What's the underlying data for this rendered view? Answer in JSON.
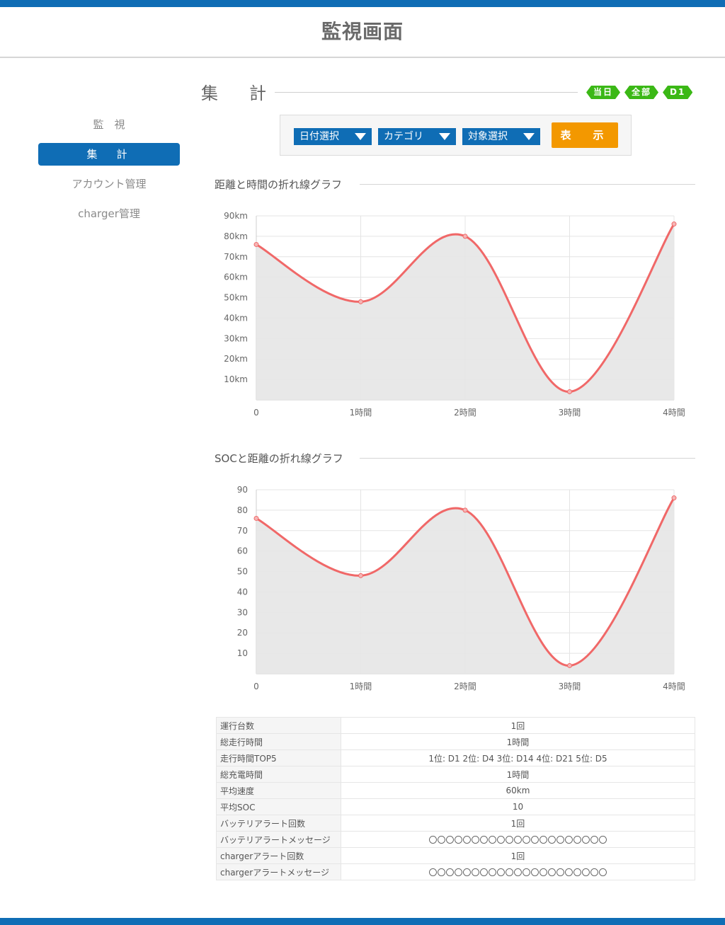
{
  "header": {
    "title": "監視画面"
  },
  "sidebar": {
    "items": [
      {
        "label": "監　視",
        "active": false
      },
      {
        "label": "集　計",
        "active": true
      },
      {
        "label": "アカウント管理",
        "active": false
      },
      {
        "label": "charger管理",
        "active": false
      }
    ]
  },
  "main": {
    "title": "集　計",
    "tags": [
      "当日",
      "全部",
      "D1"
    ],
    "filters": {
      "date": "日付選択",
      "category": "カテゴリ",
      "target": "対象選択",
      "show": "表　示"
    }
  },
  "graphs": [
    {
      "title": "距離と時間の折れ線グラフ"
    },
    {
      "title": "SOCと距離の折れ線グラフ"
    }
  ],
  "colors": {
    "brand_blue": "#0f6db5",
    "accent_orange": "#f39800",
    "tag_green": "#3bb816",
    "line_red": "#f06868",
    "area_fill": "#e6e6e6"
  },
  "chart_data": [
    {
      "type": "line",
      "title": "距離と時間の折れ線グラフ",
      "categories": [
        "0",
        "1時間",
        "2時間",
        "3時間",
        "4時間"
      ],
      "yticks": [
        "10km",
        "20km",
        "30km",
        "40km",
        "50km",
        "60km",
        "70km",
        "80km",
        "90km"
      ],
      "values": [
        76,
        48,
        80,
        4,
        86
      ],
      "ylim": [
        0,
        90
      ],
      "grid": true,
      "fill": true
    },
    {
      "type": "line",
      "title": "SOCと距離の折れ線グラフ",
      "categories": [
        "0",
        "1時間",
        "2時間",
        "3時間",
        "4時間"
      ],
      "yticks": [
        "10",
        "20",
        "30",
        "40",
        "50",
        "60",
        "70",
        "80",
        "90"
      ],
      "values": [
        76,
        48,
        80,
        4,
        86
      ],
      "ylim": [
        0,
        90
      ],
      "grid": true,
      "fill": true
    }
  ],
  "summary": {
    "rows": [
      {
        "label": "運行台数",
        "value": "1回"
      },
      {
        "label": "総走行時間",
        "value": "1時間"
      },
      {
        "label": "走行時間TOP5",
        "value": "1位: D1 2位: D4 3位: D14 4位: D21 5位: D5"
      },
      {
        "label": "総充電時間",
        "value": "1時間"
      },
      {
        "label": "平均速度",
        "value": "60km"
      },
      {
        "label": "平均SOC",
        "value": "10"
      },
      {
        "label": "バッテリアラート回数",
        "value": "1回"
      },
      {
        "label": "バッテリアラートメッセージ",
        "value": "〇〇〇〇〇〇〇〇〇〇〇〇〇〇〇〇〇〇〇〇〇"
      },
      {
        "label": "chargerアラート回数",
        "value": "1回"
      },
      {
        "label": "chargerアラートメッセージ",
        "value": "〇〇〇〇〇〇〇〇〇〇〇〇〇〇〇〇〇〇〇〇〇"
      }
    ]
  }
}
